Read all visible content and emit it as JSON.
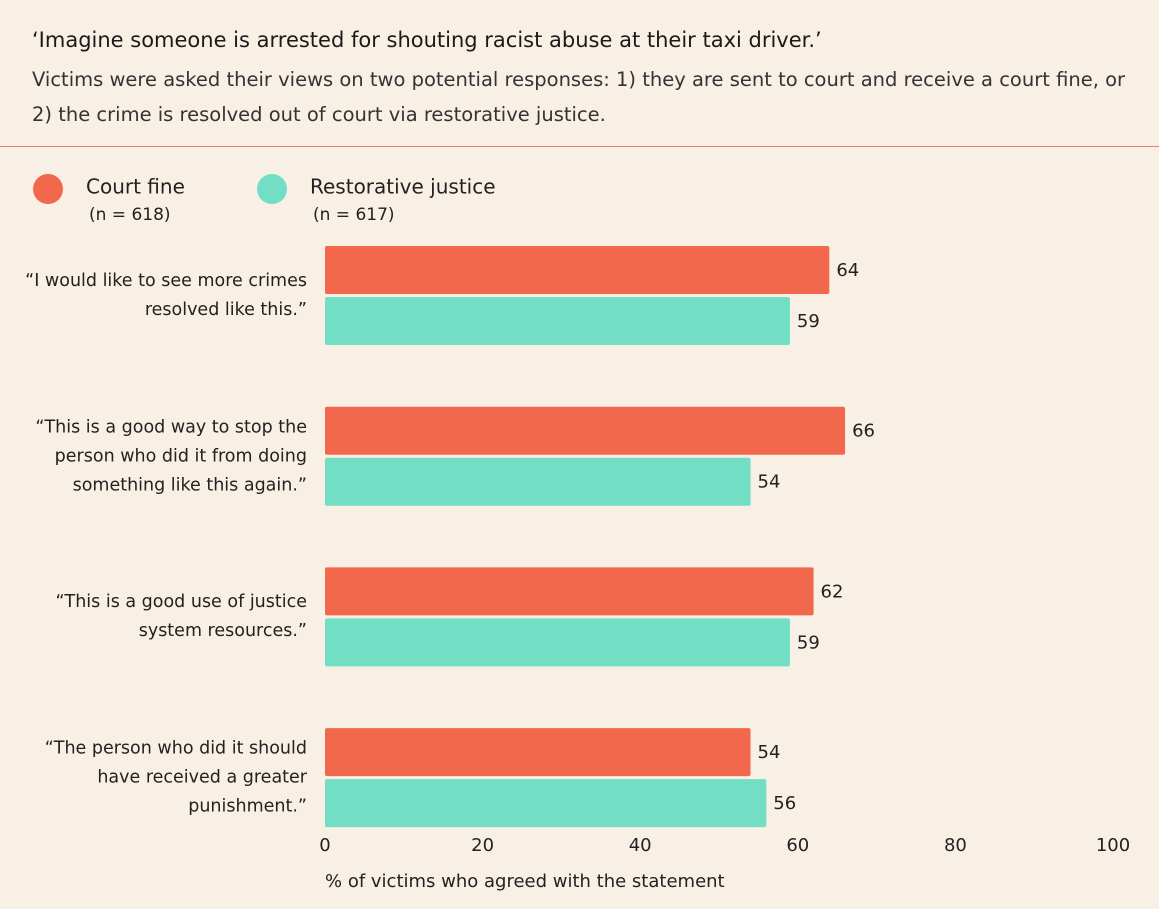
{
  "chart_data": {
    "type": "hbar",
    "title": "‘Imagine someone is arrested for shouting racist abuse at their taxi driver.’",
    "subtitle": "Victims were asked their views on two potential responses: 1) they are sent to court and receive a court fine, or 2) the crime is resolved out of court via restorative justice.",
    "categories": [
      "“I would like to see more crimes resolved like this.”",
      "“This is a good way to stop the person who did it from doing something like this again.”",
      "“This is a good use of justice system resources.”",
      "“The person who did it should have received a greater punishment.”"
    ],
    "series": [
      {
        "name": "Court fine",
        "note": "(n = 618)",
        "color": "#f2684d",
        "values": [
          64,
          66,
          62,
          54
        ]
      },
      {
        "name": "Restorative justice",
        "note": "(n = 617)",
        "color": "#72dec4",
        "values": [
          59,
          54,
          59,
          56
        ]
      }
    ],
    "xlim": [
      0,
      100
    ],
    "xticks": [
      0,
      20,
      40,
      60,
      80,
      100
    ],
    "xlabel": "% of victims who agreed with the statement"
  }
}
